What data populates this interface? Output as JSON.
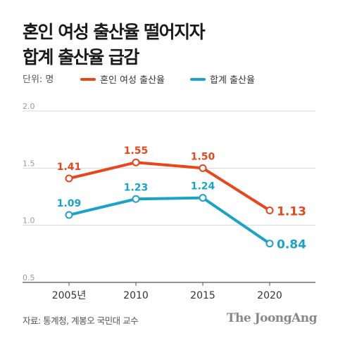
{
  "header": {
    "title_line1": "혼인 여성 출산율 떨어지자",
    "title_line2": "합계 출산율 급감"
  },
  "footer": {
    "source": "자료: 통계청, 계봉오 국민대 교수",
    "brand": "The JoongAng"
  },
  "colors": {
    "series_married": "#e8471b",
    "series_total": "#1aa3c8",
    "grid": "#d7d7d7",
    "axis": "#555555",
    "tick_text": "#999999"
  },
  "chart_data": {
    "type": "line",
    "unit_label": "단위: 명",
    "x": [
      "2005년",
      "2010",
      "2015",
      "2020"
    ],
    "ylim": [
      0.5,
      2.0
    ],
    "yticks": [
      "0.5",
      "1.0",
      "1.5",
      "2.0"
    ],
    "grid": true,
    "legend_position": "top",
    "series": [
      {
        "name": "혼인 여성 출산율",
        "color": "#e8471b",
        "values": [
          1.41,
          1.55,
          1.5,
          1.13
        ],
        "labels": [
          "1.41",
          "1.55",
          "1.50",
          "1.13"
        ]
      },
      {
        "name": "합계 출산율",
        "color": "#1aa3c8",
        "values": [
          1.09,
          1.23,
          1.24,
          0.84
        ],
        "labels": [
          "1.09",
          "1.23",
          "1.24",
          "0.84"
        ]
      }
    ]
  }
}
